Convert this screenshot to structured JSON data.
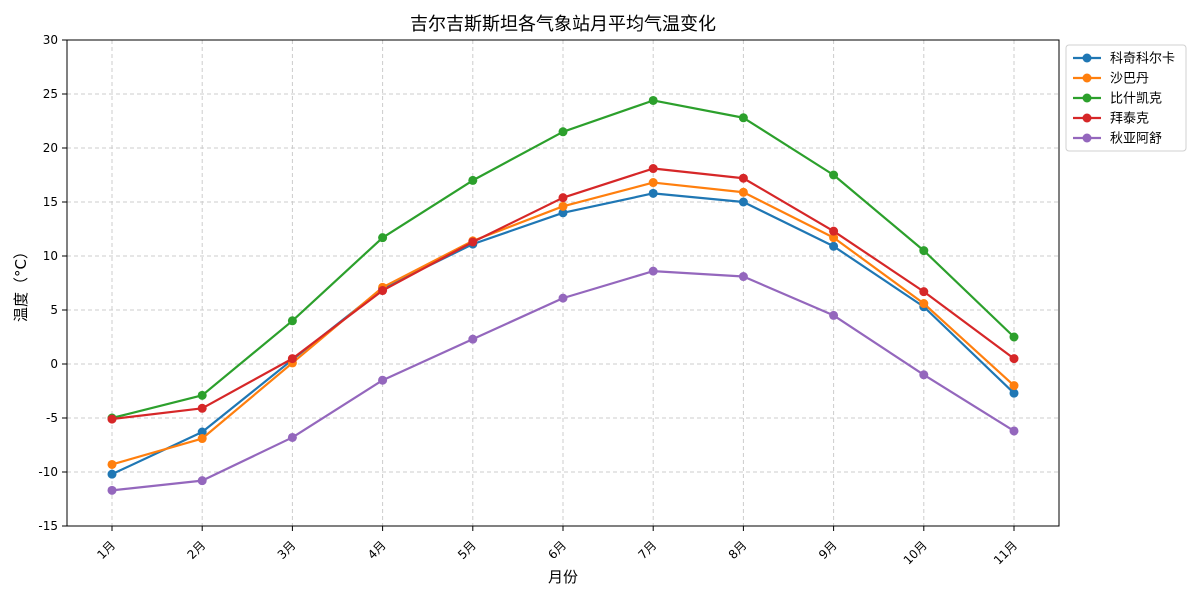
{
  "chart_data": {
    "type": "line",
    "title": "吉尔吉斯斯坦各气象站月平均气温变化",
    "xlabel": "月份",
    "ylabel": "温度（°C）",
    "categories": [
      "1月",
      "2月",
      "3月",
      "4月",
      "5月",
      "6月",
      "7月",
      "8月",
      "9月",
      "10月",
      "11月"
    ],
    "ylim": [
      -15,
      30
    ],
    "yticks": [
      -15,
      -10,
      -5,
      0,
      5,
      10,
      15,
      20,
      25,
      30
    ],
    "grid": true,
    "legend_position": "top-right outside",
    "series": [
      {
        "name": "科奇科尔卡",
        "color": "#1f77b4",
        "values": [
          -10.2,
          -6.3,
          0.4,
          7.0,
          11.1,
          14.0,
          15.8,
          15.0,
          10.9,
          5.3,
          -2.7
        ]
      },
      {
        "name": "沙巴丹",
        "color": "#ff7f0e",
        "values": [
          -9.3,
          -6.9,
          0.1,
          7.1,
          11.4,
          14.6,
          16.8,
          15.9,
          11.7,
          5.6,
          -2.0
        ]
      },
      {
        "name": "比什凯克",
        "color": "#2ca02c",
        "values": [
          -5.0,
          -2.9,
          4.0,
          11.7,
          17.0,
          21.5,
          24.4,
          22.8,
          17.5,
          10.5,
          2.5
        ]
      },
      {
        "name": "拜泰克",
        "color": "#d62728",
        "values": [
          -5.1,
          -4.1,
          0.5,
          6.8,
          11.3,
          15.4,
          18.1,
          17.2,
          12.3,
          6.7,
          0.5
        ]
      },
      {
        "name": "秋亚阿舒",
        "color": "#9467bd",
        "values": [
          -11.7,
          -10.8,
          -6.8,
          -1.5,
          2.3,
          6.1,
          8.6,
          8.1,
          4.5,
          -1.0,
          -6.2
        ]
      }
    ]
  }
}
